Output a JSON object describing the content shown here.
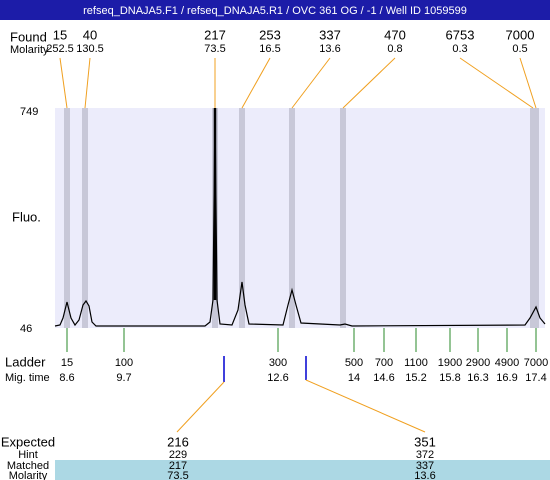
{
  "title": "refseq_DNAJA5.F1 / refseq_DNAJA5.R1 / OVC 361 OG / -1 / Well ID 1059599",
  "found": {
    "label": "Found",
    "values": [
      15,
      40,
      217,
      253,
      337,
      470,
      6753,
      7000
    ]
  },
  "found_molarity": {
    "label": "Molarity",
    "values": [
      252.5,
      130.5,
      73.5,
      16.5,
      13.6,
      0.8,
      0.3,
      0.5
    ]
  },
  "y_axis": {
    "label": "Fluo.",
    "top": 749,
    "bottom": 46
  },
  "ladder": {
    "label": "Ladder",
    "values": [
      15,
      100,
      300,
      500,
      700,
      1100,
      1900,
      2900,
      4900,
      7000
    ]
  },
  "mig_time": {
    "label": "Mig. time",
    "values": [
      8.6,
      9.7,
      12.6,
      14,
      14.6,
      15.2,
      15.8,
      16.3,
      16.9,
      17.4
    ]
  },
  "expected": {
    "label": "Expected",
    "values": [
      216,
      351
    ]
  },
  "hint": {
    "label": "Hint",
    "values": [
      229,
      372
    ]
  },
  "matched": {
    "label": "Matched",
    "values": [
      217,
      337
    ]
  },
  "matched_molarity": {
    "label": "Molarity",
    "values": [
      73.5,
      13.6
    ]
  }
}
